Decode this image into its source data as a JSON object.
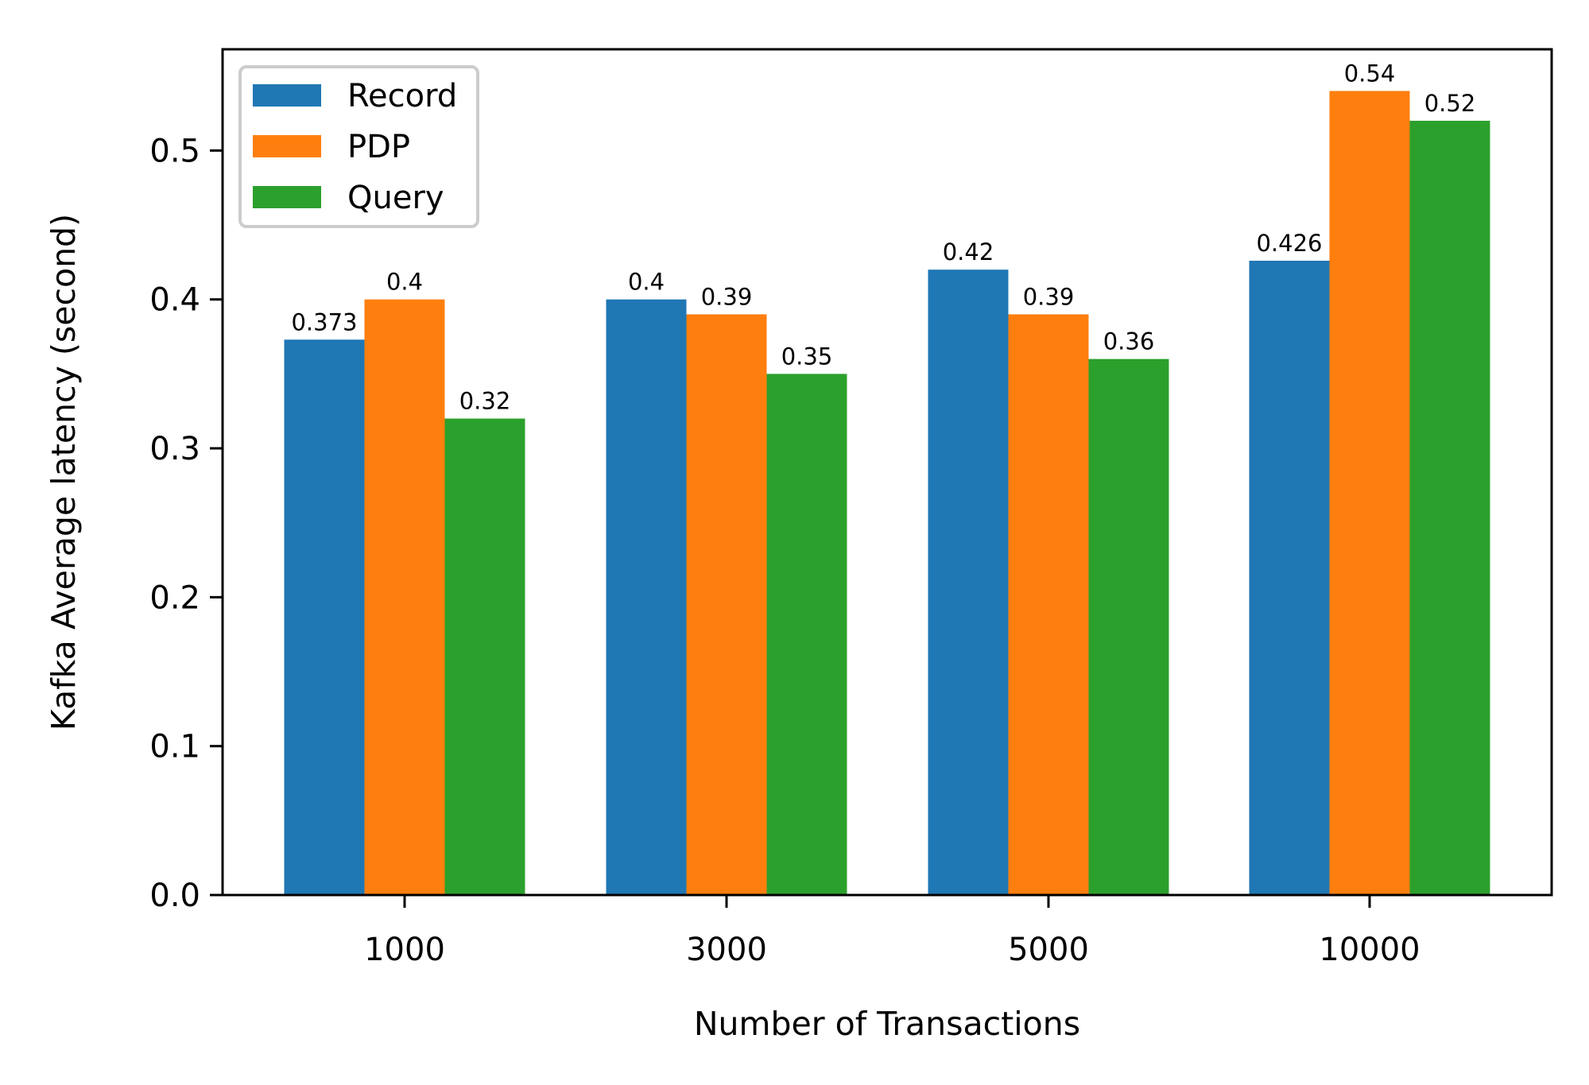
{
  "chart_data": {
    "type": "bar",
    "categories": [
      "1000",
      "3000",
      "5000",
      "10000"
    ],
    "series": [
      {
        "name": "Record",
        "values": [
          0.373,
          0.4,
          0.42,
          0.426
        ],
        "labels": [
          "0.373",
          "0.4",
          "0.42",
          "0.426"
        ],
        "color": "#1f77b4"
      },
      {
        "name": "PDP",
        "values": [
          0.4,
          0.39,
          0.39,
          0.54
        ],
        "labels": [
          "0.4",
          "0.39",
          "0.39",
          "0.54"
        ],
        "color": "#ff7f0e"
      },
      {
        "name": "Query",
        "values": [
          0.32,
          0.35,
          0.36,
          0.52
        ],
        "labels": [
          "0.32",
          "0.35",
          "0.36",
          "0.52"
        ],
        "color": "#2ca02c"
      }
    ],
    "xlabel": "Number of Transactions",
    "ylabel": "Kafka Average latency (second)",
    "ylim": [
      0,
      0.568
    ],
    "yticks": [
      0.0,
      0.1,
      0.2,
      0.3,
      0.4,
      0.5
    ],
    "ytick_labels": [
      "0.0",
      "0.1",
      "0.2",
      "0.3",
      "0.4",
      "0.5"
    ],
    "grid": false,
    "legend_position": "top-left"
  }
}
